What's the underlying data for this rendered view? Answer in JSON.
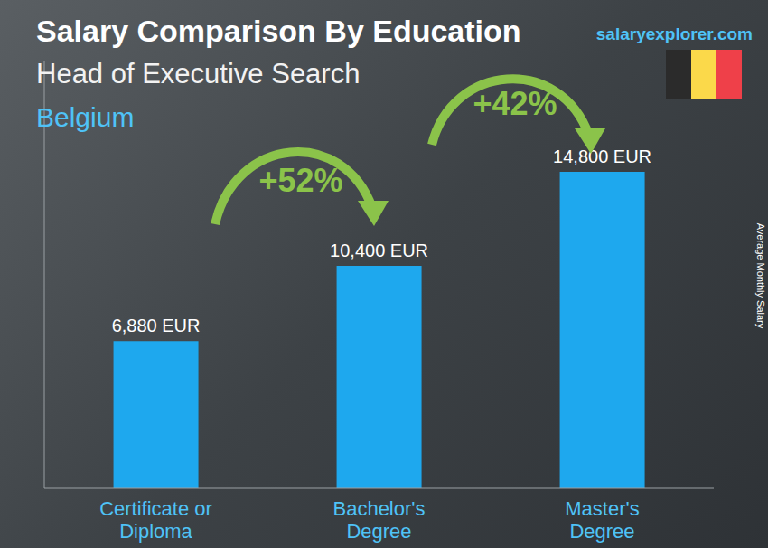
{
  "chart_data": {
    "type": "bar",
    "title": "Salary Comparison By Education",
    "subtitle": "Head of Executive Search",
    "location": "Belgium",
    "source": "salaryexplorer.com",
    "y_label": "Average Monthly Salary",
    "categories": [
      "Certificate or Diploma",
      "Bachelor's Degree",
      "Master's Degree"
    ],
    "values": [
      6880,
      10400,
      14800
    ],
    "value_labels": [
      "6,880 EUR",
      "10,400 EUR",
      "14,800 EUR"
    ],
    "data_labels": true,
    "color": "#1ea8ee",
    "ylim": [
      0,
      20000
    ],
    "tick_labels": false,
    "grid": false,
    "annotations": [
      "+52%",
      "+42%"
    ]
  }
}
